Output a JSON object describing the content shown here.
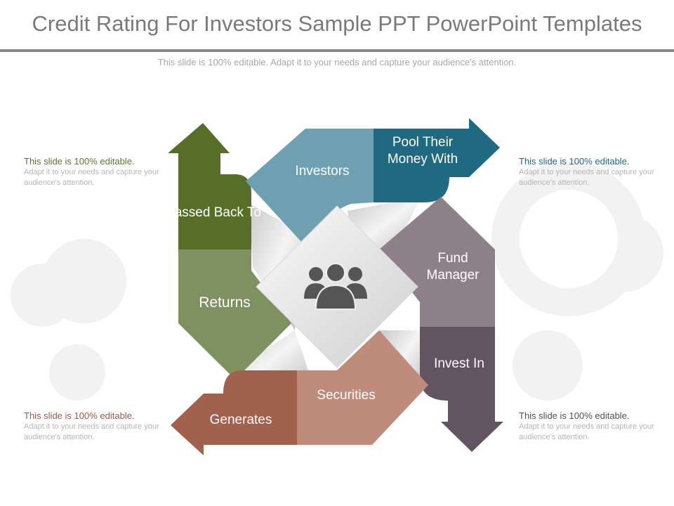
{
  "title": "Credit Rating For Investors Sample PPT PowerPoint Templates",
  "subtitle": "This slide is 100% editable. Adapt it to your needs and capture your audience's attention.",
  "notes": [
    {
      "heading": "This slide is 100% editable.",
      "body": "Adapt it to your needs and capture your audience's attention.",
      "color": "#5a7a2a"
    },
    {
      "heading": "This slide is 100% editable.",
      "body": "Adapt it to your needs and capture your audience's attention.",
      "color": "#1f6a80"
    },
    {
      "heading": "This slide is 100% editable.",
      "body": "Adapt it to your needs and capture your audience's attention.",
      "color": "#9a5a48"
    },
    {
      "heading": "This slide is 100% editable.",
      "body": "Adapt it to your needs and capture your audience's attention.",
      "color": "#5a4a5a"
    }
  ],
  "diagram": {
    "labels": {
      "passed_back_to": "Passed Back To",
      "returns": "Returns",
      "investors": "Investors",
      "pool": "Pool Their Money With",
      "fund_manager": "Fund Manager",
      "invest_in": "Invest In",
      "securities": "Securities",
      "generates": "Generates"
    },
    "center_icon": "people-group-icon",
    "colors": {
      "green_dark": "#566e28",
      "green_light": "#7f9160",
      "teal_light": "#6fa0b2",
      "teal_dark": "#1f6a80",
      "mauve_light": "#8e8089",
      "mauve_dark": "#625460",
      "brown_light": "#bf8b7a",
      "brown_dark": "#a2614d"
    }
  }
}
